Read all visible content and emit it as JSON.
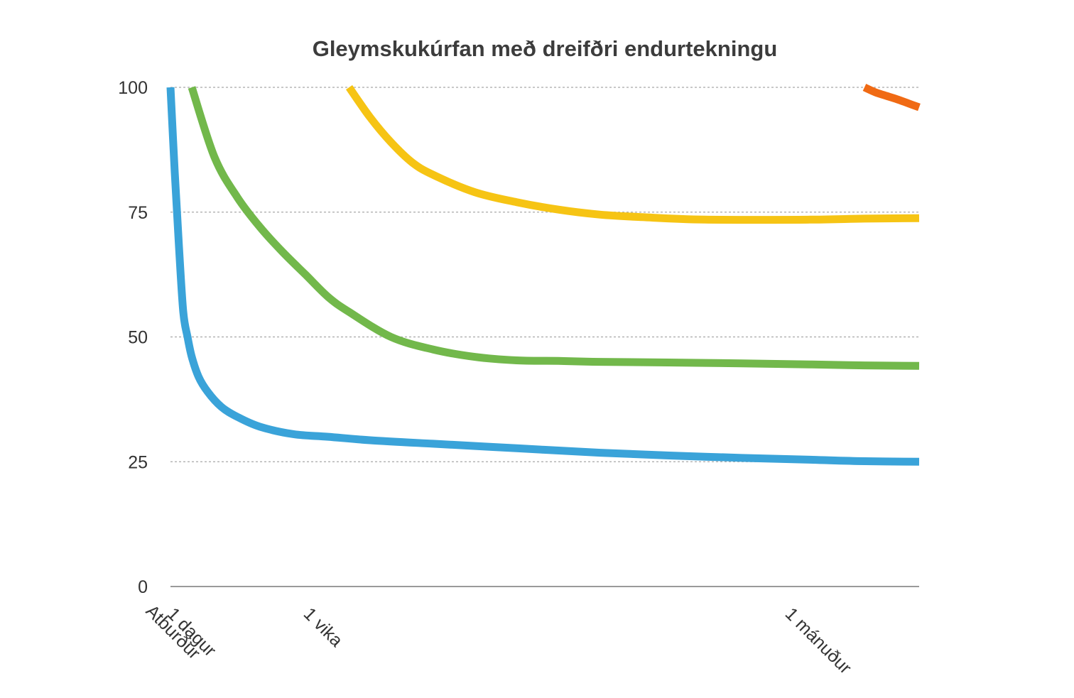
{
  "chart_data": {
    "type": "line",
    "title": "Gleymskukúrfan með dreifðri endurtekningu",
    "xlabel": "",
    "ylabel": "",
    "ylim": [
      0,
      100
    ],
    "xlim": [
      0,
      40
    ],
    "yticks": [
      "0",
      "25",
      "50",
      "75",
      "100"
    ],
    "xticks": [
      {
        "x": 0,
        "label": "Atburður"
      },
      {
        "x": 1,
        "label": "1 dagur"
      },
      {
        "x": 7,
        "label": "1 vika"
      },
      {
        "x": 30,
        "label": "1 mánuður"
      }
    ],
    "grid": true,
    "legend": "none",
    "series": [
      {
        "color": "#3aa3d9",
        "x": [
          0,
          0.2,
          0.4,
          0.6,
          0.8,
          1,
          1.3,
          1.7,
          2.3,
          3,
          4,
          5.5,
          7,
          9,
          12,
          16,
          20,
          25,
          30,
          35,
          40
        ],
        "y": [
          100,
          83,
          68,
          55,
          50,
          46,
          42,
          39,
          36,
          34,
          32,
          30.5,
          30,
          29.3,
          28.6,
          27.7,
          26.8,
          26,
          25.4,
          25.1,
          25
        ]
      },
      {
        "color": "#72b84b",
        "x": [
          1,
          2,
          3,
          4,
          5,
          6,
          7,
          8,
          10,
          12,
          14,
          16,
          18,
          20,
          25,
          30,
          35,
          40
        ],
        "y": [
          100,
          86,
          78,
          72,
          67,
          62.5,
          58,
          55,
          50,
          47.5,
          46,
          45.3,
          45.2,
          45,
          44.8,
          44.5,
          44.3,
          44.2
        ]
      },
      {
        "color": "#f6c414",
        "x": [
          8,
          9,
          10,
          11,
          12,
          14,
          16,
          18,
          20,
          22,
          25,
          30,
          35,
          40
        ],
        "y": [
          100,
          94,
          89,
          85,
          82.5,
          79,
          77,
          75.5,
          74.5,
          74,
          73.5,
          73.5,
          73.7,
          73.8
        ]
      },
      {
        "color": "#f06a14",
        "x": [
          35,
          36,
          37,
          38,
          39,
          40
        ],
        "y": [
          100,
          99,
          98.3,
          97.6,
          96.8,
          96
        ]
      }
    ]
  }
}
